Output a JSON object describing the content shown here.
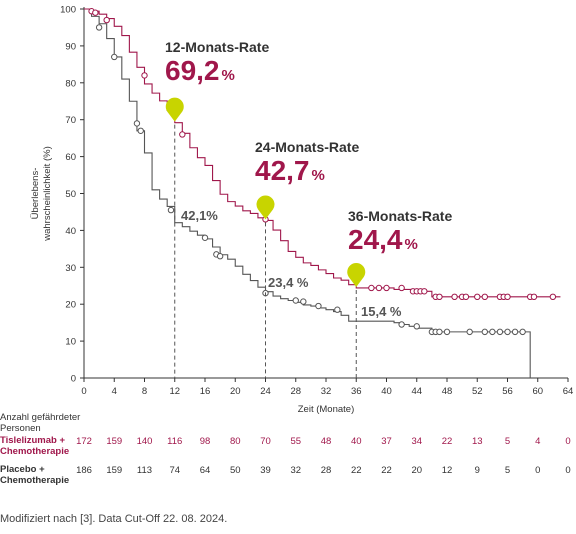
{
  "chart_data": {
    "type": "line",
    "xlabel": "Zeit (Monate)",
    "ylabel": "Überlebens-wahrscheinlichkeit (%)",
    "ylabel_lines": [
      "Überlebens-",
      "wahrscheinlichkeit (%)"
    ],
    "xlim": [
      0,
      64
    ],
    "ylim": [
      0,
      100
    ],
    "x_ticks": [
      0,
      4,
      8,
      12,
      16,
      20,
      24,
      28,
      32,
      36,
      40,
      44,
      48,
      52,
      56,
      60,
      64
    ],
    "y_ticks": [
      0,
      10,
      20,
      30,
      40,
      50,
      60,
      70,
      80,
      90,
      100
    ],
    "grid": false,
    "colors": {
      "tislelizumab": "#a0174b",
      "placebo": "#555555",
      "marker": "#c8d400",
      "text": "#333333"
    },
    "series": [
      {
        "name": "Tislelizumab + Chemotherapie",
        "color": "#a0174b",
        "points": [
          [
            0,
            100
          ],
          [
            1,
            99.4
          ],
          [
            2,
            98.6
          ],
          [
            3,
            97.4
          ],
          [
            4,
            95.3
          ],
          [
            5,
            92.8
          ],
          [
            6,
            88.3
          ],
          [
            7,
            84.2
          ],
          [
            8,
            79.7
          ],
          [
            9,
            77.2
          ],
          [
            10,
            75.1
          ],
          [
            11,
            72.5
          ],
          [
            12,
            69.2
          ],
          [
            13,
            66.3
          ],
          [
            14,
            62.4
          ],
          [
            15,
            59.7
          ],
          [
            16,
            57.6
          ],
          [
            17,
            53.5
          ],
          [
            18,
            49.8
          ],
          [
            19,
            47.8
          ],
          [
            20,
            46.6
          ],
          [
            21,
            45.3
          ],
          [
            22,
            44.6
          ],
          [
            23,
            43.4
          ],
          [
            24,
            42.7
          ],
          [
            25,
            40.1
          ],
          [
            26,
            37.2
          ],
          [
            27,
            34.3
          ],
          [
            28,
            32.7
          ],
          [
            29,
            31.2
          ],
          [
            30,
            30.5
          ],
          [
            31,
            29.3
          ],
          [
            32,
            28.3
          ],
          [
            33,
            27.1
          ],
          [
            34,
            26.5
          ],
          [
            35,
            25.3
          ],
          [
            36,
            24.4
          ],
          [
            40,
            24.4
          ],
          [
            41,
            24.0
          ],
          [
            45,
            23.5
          ],
          [
            46,
            22.0
          ],
          [
            59,
            22.0
          ],
          [
            63,
            22.0
          ]
        ],
        "censored": [
          [
            1,
            99.4
          ],
          [
            1.5,
            99
          ],
          [
            3,
            97
          ],
          [
            8,
            82
          ],
          [
            13,
            66
          ],
          [
            24,
            43
          ],
          [
            38,
            24.4
          ],
          [
            39,
            24.4
          ],
          [
            40,
            24.4
          ],
          [
            42,
            24.4
          ],
          [
            43.5,
            23.5
          ],
          [
            44,
            23.5
          ],
          [
            44.5,
            23.5
          ],
          [
            45,
            23.5
          ],
          [
            46.5,
            22
          ],
          [
            47,
            22
          ],
          [
            49,
            22
          ],
          [
            50,
            22
          ],
          [
            50.5,
            22
          ],
          [
            52,
            22
          ],
          [
            53,
            22
          ],
          [
            55,
            22
          ],
          [
            55.5,
            22
          ],
          [
            56,
            22
          ],
          [
            59,
            22
          ],
          [
            59.5,
            22
          ],
          [
            62,
            22
          ]
        ]
      },
      {
        "name": "Placebo + Chemotherapie",
        "color": "#555555",
        "points": [
          [
            0,
            100
          ],
          [
            1,
            98
          ],
          [
            2,
            96
          ],
          [
            3,
            92
          ],
          [
            4,
            87
          ],
          [
            5,
            81
          ],
          [
            6,
            75
          ],
          [
            7,
            67
          ],
          [
            8,
            61
          ],
          [
            9,
            51
          ],
          [
            10,
            48.5
          ],
          [
            11,
            46.5
          ],
          [
            12,
            42.1
          ],
          [
            13,
            41
          ],
          [
            14,
            39.8
          ],
          [
            15,
            38.7
          ],
          [
            16,
            37.7
          ],
          [
            17,
            35.5
          ],
          [
            18,
            33.4
          ],
          [
            19,
            32.2
          ],
          [
            20,
            30.3
          ],
          [
            21,
            28.1
          ],
          [
            22,
            26.4
          ],
          [
            23,
            24.6
          ],
          [
            24,
            23.4
          ],
          [
            25,
            22.2
          ],
          [
            26,
            21.5
          ],
          [
            27,
            21
          ],
          [
            28,
            20.5
          ],
          [
            29,
            19.8
          ],
          [
            30,
            19.5
          ],
          [
            31,
            19
          ],
          [
            32,
            18.5
          ],
          [
            33,
            18
          ],
          [
            34,
            17
          ],
          [
            35,
            15.4
          ],
          [
            36,
            15.4
          ],
          [
            40,
            15.4
          ],
          [
            41,
            15
          ],
          [
            42,
            14.5
          ],
          [
            43,
            14
          ],
          [
            44,
            13.5
          ],
          [
            46,
            12.5
          ],
          [
            59,
            12.5
          ],
          [
            59,
            0
          ]
        ],
        "censored": [
          [
            2,
            95
          ],
          [
            4,
            87
          ],
          [
            7,
            69
          ],
          [
            7.5,
            67
          ],
          [
            11.5,
            45.5
          ],
          [
            16,
            38
          ],
          [
            17.5,
            33.5
          ],
          [
            18,
            33
          ],
          [
            24,
            23
          ],
          [
            28,
            21
          ],
          [
            29,
            20.7
          ],
          [
            31,
            19.5
          ],
          [
            33.5,
            18.5
          ],
          [
            42,
            14.5
          ],
          [
            44,
            14
          ],
          [
            46,
            12.5
          ],
          [
            46.5,
            12.5
          ],
          [
            47,
            12.5
          ],
          [
            48,
            12.5
          ],
          [
            51,
            12.5
          ],
          [
            53,
            12.5
          ],
          [
            54,
            12.5
          ],
          [
            55,
            12.5
          ],
          [
            56,
            12.5
          ],
          [
            57,
            12.5
          ],
          [
            58,
            12.5
          ]
        ]
      }
    ],
    "landmarks": [
      {
        "month": 12,
        "tisle_value": 69.2,
        "placebo_value": 42.1,
        "title": "12-Monats-Rate",
        "tisle_label": "69,2",
        "placebo_label": "42,1%"
      },
      {
        "month": 24,
        "tisle_value": 42.7,
        "placebo_value": 23.4,
        "title": "24-Monats-Rate",
        "tisle_label": "42,7",
        "placebo_label": "23,4 %"
      },
      {
        "month": 36,
        "tisle_value": 24.4,
        "placebo_value": 15.4,
        "title": "36-Monats-Rate",
        "tisle_label": "24,4",
        "placebo_label": "15,4 %"
      }
    ],
    "percent_sign": "%",
    "at_risk": {
      "header": [
        "Anzahl gefährdeter",
        "Personen"
      ],
      "x": [
        0,
        4,
        8,
        12,
        16,
        20,
        24,
        28,
        32,
        36,
        40,
        44,
        48,
        52,
        56,
        60,
        64
      ],
      "rows": [
        {
          "label": [
            "Tislelizumab +",
            "Chemotherapie"
          ],
          "color": "#a0174b",
          "values": [
            "172",
            "159",
            "140",
            "116",
            "98",
            "80",
            "70",
            "55",
            "48",
            "40",
            "37",
            "34",
            "22",
            "13",
            "5",
            "4",
            "0"
          ]
        },
        {
          "label": [
            "Placebo +",
            "Chemotherapie"
          ],
          "color": "#333333",
          "values": [
            "186",
            "159",
            "113",
            "74",
            "64",
            "50",
            "39",
            "32",
            "28",
            "22",
            "22",
            "20",
            "12",
            "9",
            "5",
            "0",
            "0"
          ]
        }
      ]
    }
  },
  "footer": "Modifiziert nach [3]. Data Cut-Off 22. 08. 2024."
}
